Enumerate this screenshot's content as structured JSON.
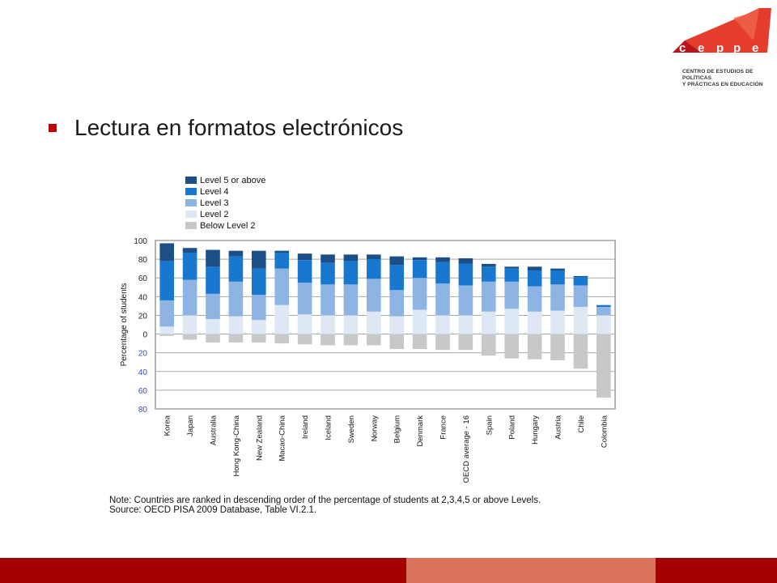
{
  "logo": {
    "letters": [
      "c",
      "e",
      "p",
      "p",
      "e"
    ],
    "caption_line1": "CENTRO DE ESTUDIOS DE POLÍTICAS",
    "caption_line2": "Y PRÁCTICAS EN EDUCACIÓN",
    "colors": {
      "red": "#e63c2e",
      "dark_red": "#b8141c"
    }
  },
  "slide": {
    "bullet_color": "#c00000",
    "title": "Lectura en formatos electrónicos"
  },
  "chart_data": {
    "type": "bar",
    "stacked": true,
    "diverging": true,
    "title": "",
    "xlabel": "",
    "ylabel": "Percentage of students",
    "ylim": [
      -80,
      100
    ],
    "yticks_up": [
      "100",
      "80",
      "60",
      "40",
      "20",
      "0"
    ],
    "yticks_down": [
      "20",
      "40",
      "60",
      "80"
    ],
    "grid": true,
    "legend_position": "top-left",
    "categories": [
      "Korea",
      "Japan",
      "Australia",
      "Hong Kong-China",
      "New Zealand",
      "Macao-China",
      "Ireland",
      "Iceland",
      "Sweden",
      "Norway",
      "Belgium",
      "Denmark",
      "France",
      "OECD average - 16",
      "Spain",
      "Poland",
      "Hungary",
      "Austria",
      "Chile",
      "Colombia"
    ],
    "series": [
      {
        "name": "Below Level 2",
        "color": "#c8c8c8",
        "direction": "down",
        "values": [
          2,
          6,
          9,
          9,
          9,
          10,
          11,
          12,
          12,
          12,
          16,
          16,
          17,
          17,
          23,
          26,
          27,
          28,
          37,
          68
        ]
      },
      {
        "name": "Level 2",
        "color": "#dde8f4",
        "direction": "up",
        "values": [
          8,
          20,
          16,
          19,
          15,
          31,
          21,
          20,
          20,
          24,
          19,
          26,
          20,
          20,
          24,
          27,
          24,
          25,
          29,
          20
        ]
      },
      {
        "name": "Level 3",
        "color": "#8db4e2",
        "direction": "up",
        "values": [
          28,
          38,
          27,
          37,
          27,
          39,
          34,
          33,
          33,
          35,
          28,
          34,
          34,
          32,
          32,
          29,
          27,
          28,
          23,
          9
        ]
      },
      {
        "name": "Level 4",
        "color": "#1878d0",
        "direction": "up",
        "values": [
          42,
          29,
          29,
          27,
          28,
          17,
          24,
          23,
          25,
          21,
          27,
          19,
          23,
          23,
          16,
          14,
          17,
          15,
          9,
          2
        ]
      },
      {
        "name": "Level 5 or above",
        "color": "#1b4f86",
        "direction": "up",
        "values": [
          19,
          5,
          18,
          6,
          19,
          2,
          7,
          9,
          7,
          5,
          9,
          3,
          5,
          6,
          3,
          2,
          4,
          2,
          1,
          0
        ]
      }
    ],
    "legend_order": [
      "Level 5 or above",
      "Level 4",
      "Level 3",
      "Level 2",
      "Below Level 2"
    ],
    "up_tick_color": "#222222",
    "down_tick_color": "#3d48b8"
  },
  "note": {
    "line1": "Note: Countries are ranked in descending order of the percentage of students at 2,3,4,5 or above Levels.",
    "line2": "Source: OECD PISA 2009 Database, Table VI.2.1."
  },
  "footer": {
    "colors": {
      "left": "#a50000",
      "middle": "#d9735a",
      "right": "#a50000"
    }
  }
}
